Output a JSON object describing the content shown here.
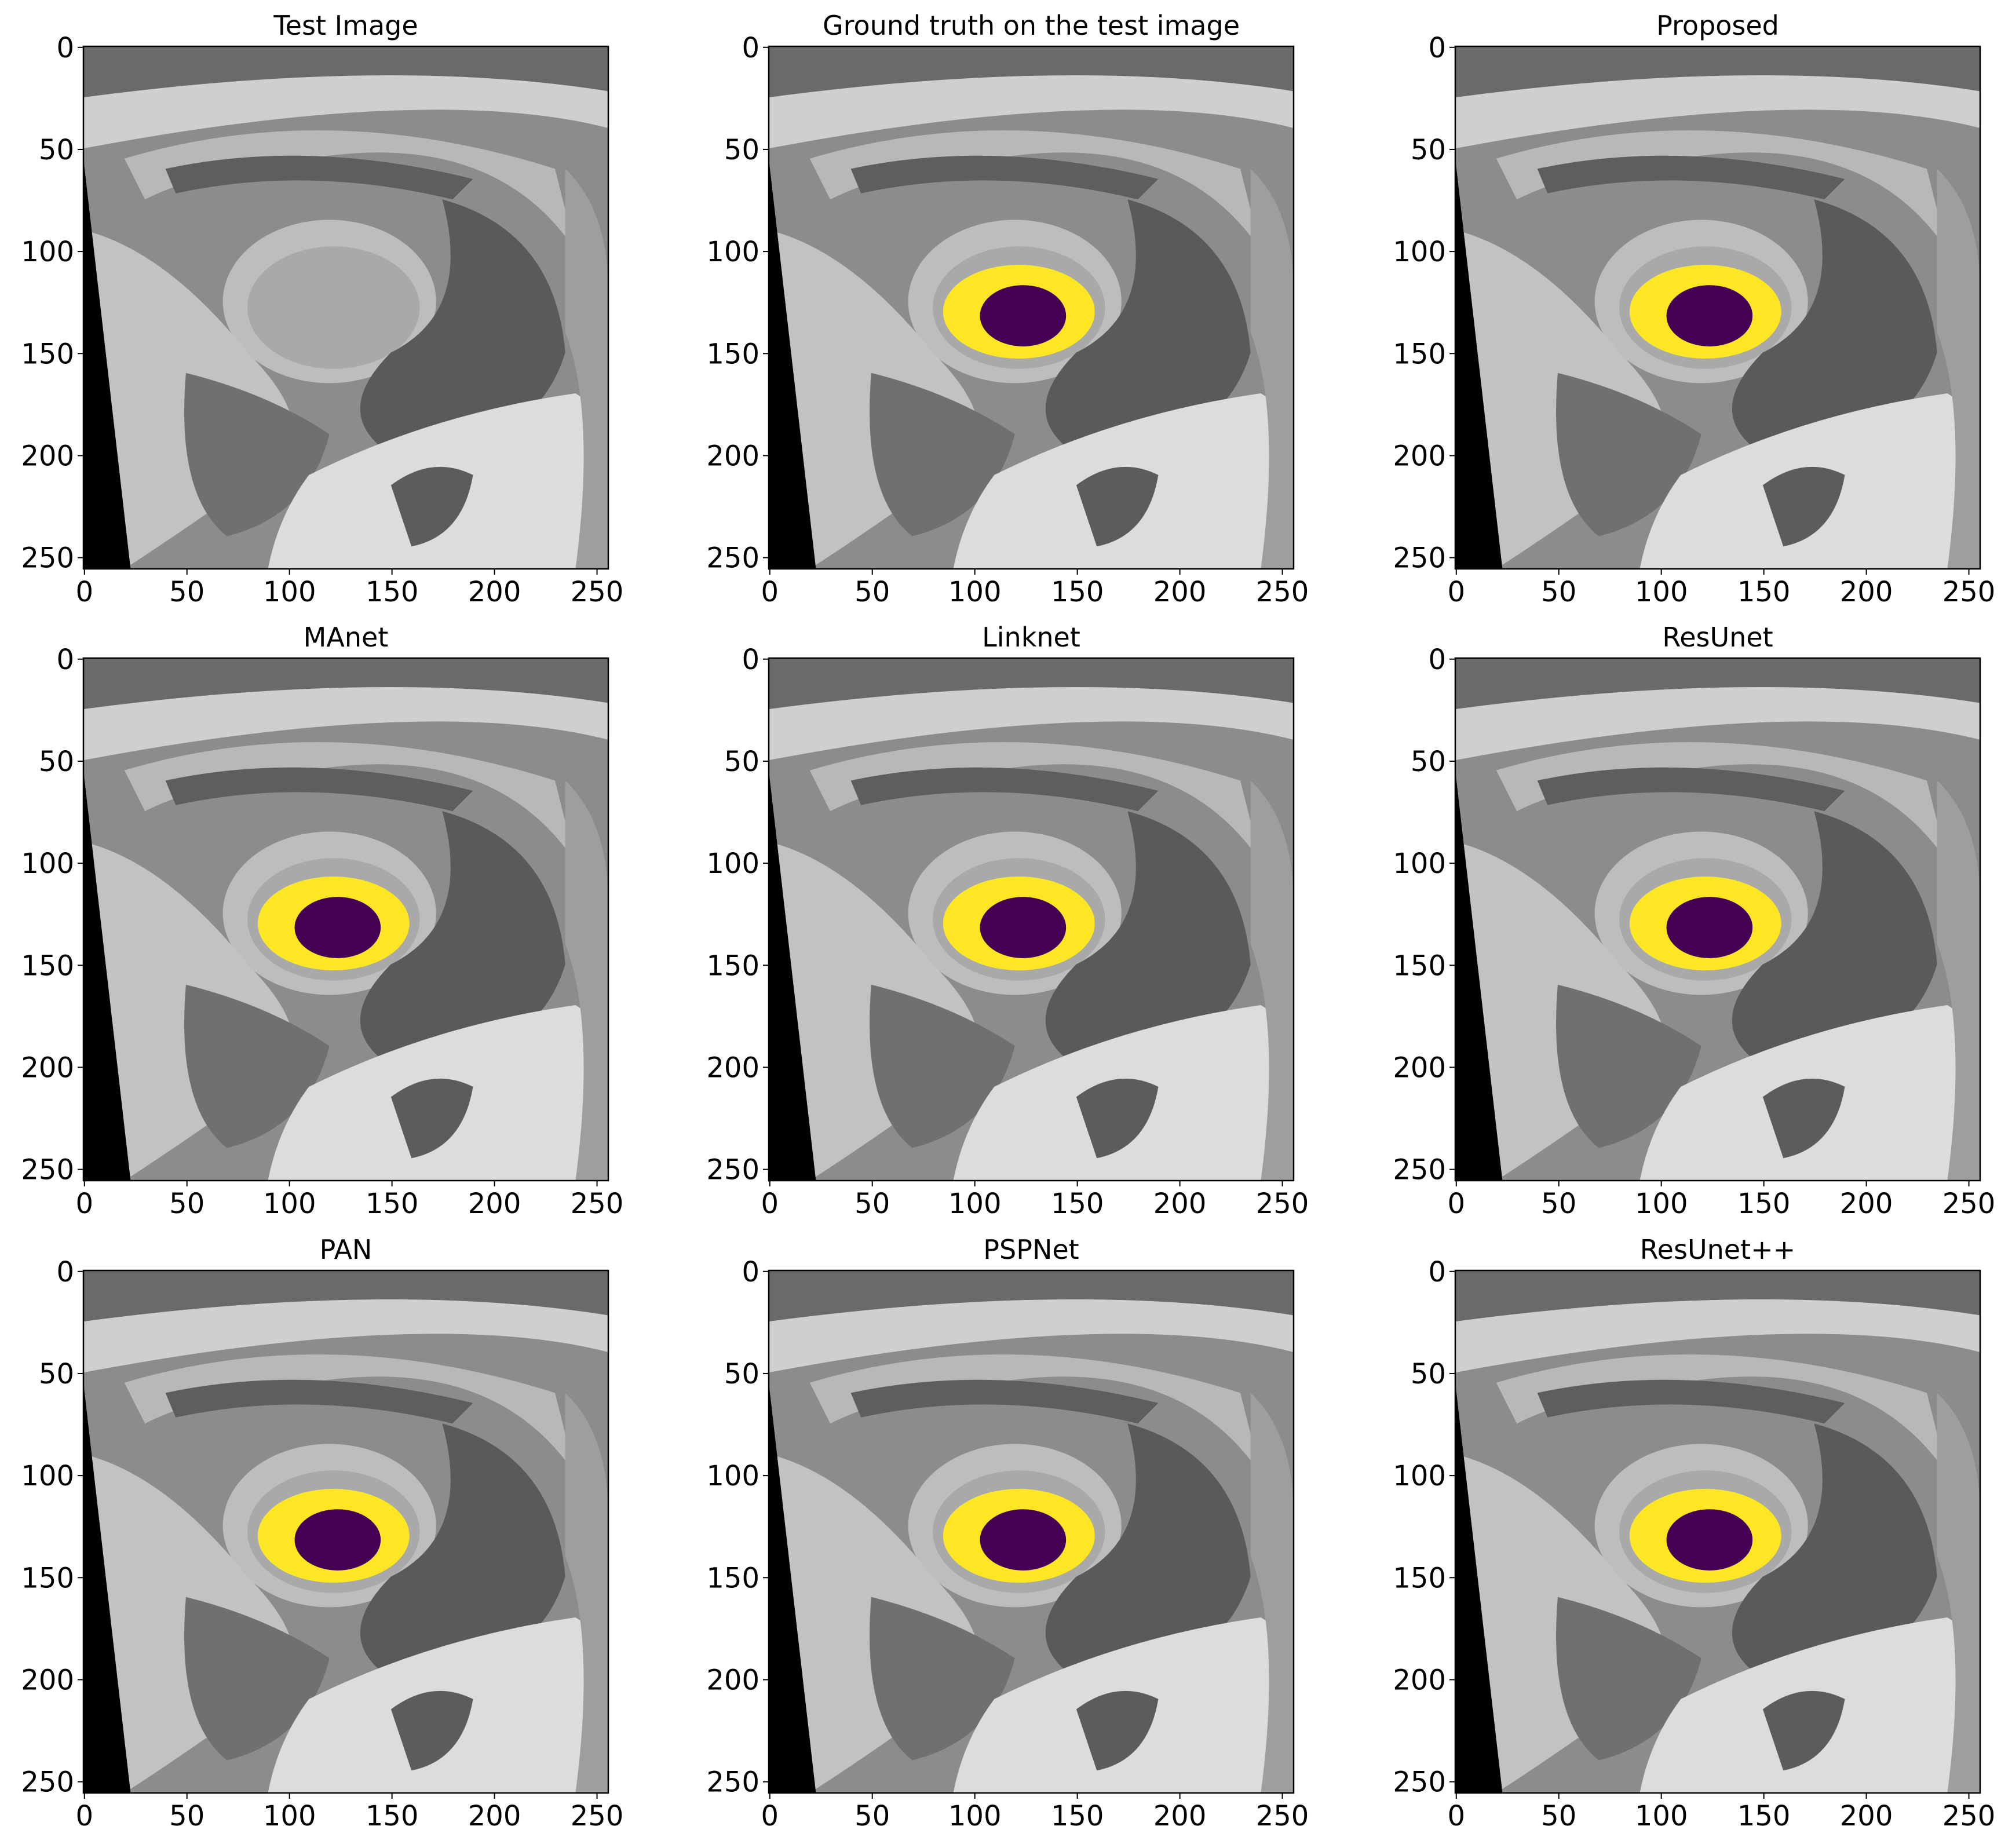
{
  "chart_data": [
    {
      "type": "image",
      "title": "Test Image",
      "xlim": [
        -0.5,
        255.5
      ],
      "ylim": [
        255.5,
        -0.5
      ],
      "xticks": [
        0,
        50,
        100,
        150,
        200,
        250
      ],
      "yticks": [
        0,
        50,
        100,
        150,
        200,
        250
      ]
    },
    {
      "type": "image",
      "title": "Ground truth on the test image",
      "xlim": [
        -0.5,
        255.5
      ],
      "ylim": [
        255.5,
        -0.5
      ],
      "xticks": [
        0,
        50,
        100,
        150,
        200,
        250
      ],
      "yticks": [
        0,
        50,
        100,
        150,
        200,
        250
      ]
    },
    {
      "type": "image",
      "title": "Proposed",
      "xlim": [
        -0.5,
        255.5
      ],
      "ylim": [
        255.5,
        -0.5
      ],
      "xticks": [
        0,
        50,
        100,
        150,
        200,
        250
      ],
      "yticks": [
        0,
        50,
        100,
        150,
        200,
        250
      ]
    },
    {
      "type": "image",
      "title": "MAnet",
      "xlim": [
        -0.5,
        255.5
      ],
      "ylim": [
        255.5,
        -0.5
      ],
      "xticks": [
        0,
        50,
        100,
        150,
        200,
        250
      ],
      "yticks": [
        0,
        50,
        100,
        150,
        200,
        250
      ]
    },
    {
      "type": "image",
      "title": "Linknet",
      "xlim": [
        -0.5,
        255.5
      ],
      "ylim": [
        255.5,
        -0.5
      ],
      "xticks": [
        0,
        50,
        100,
        150,
        200,
        250
      ],
      "yticks": [
        0,
        50,
        100,
        150,
        200,
        250
      ]
    },
    {
      "type": "image",
      "title": "ResUnet",
      "xlim": [
        -0.5,
        255.5
      ],
      "ylim": [
        255.5,
        -0.5
      ],
      "xticks": [
        0,
        50,
        100,
        150,
        200,
        250
      ],
      "yticks": [
        0,
        50,
        100,
        150,
        200,
        250
      ]
    },
    {
      "type": "image",
      "title": "PAN",
      "xlim": [
        -0.5,
        255.5
      ],
      "ylim": [
        255.5,
        -0.5
      ],
      "xticks": [
        0,
        50,
        100,
        150,
        200,
        250
      ],
      "yticks": [
        0,
        50,
        100,
        150,
        200,
        250
      ]
    },
    {
      "type": "image",
      "title": "PSPNet",
      "xlim": [
        -0.5,
        255.5
      ],
      "ylim": [
        255.5,
        -0.5
      ],
      "xticks": [
        0,
        50,
        100,
        150,
        200,
        250
      ],
      "yticks": [
        0,
        50,
        100,
        150,
        200,
        250
      ]
    },
    {
      "type": "image",
      "title": "ResUnet++",
      "xlim": [
        -0.5,
        255.5
      ],
      "ylim": [
        255.5,
        -0.5
      ],
      "xticks": [
        0,
        50,
        100,
        150,
        200,
        250
      ],
      "yticks": [
        0,
        50,
        100,
        150,
        200,
        250
      ]
    }
  ]
}
